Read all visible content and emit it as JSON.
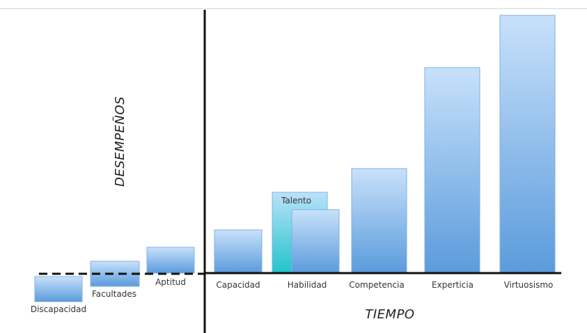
{
  "diagram": {
    "y_axis_label": "DESEMPEÑOS",
    "x_axis_label": "TIEMPO",
    "below_baseline": [
      {
        "label": "Discapacidad"
      }
    ],
    "pre_axis_bars": [
      {
        "label": "Facultades"
      },
      {
        "label": "Aptitud"
      }
    ],
    "main_bars": [
      {
        "label": "Capacidad"
      },
      {
        "label": "Habilidad",
        "overlay_label": "Talento"
      },
      {
        "label": "Competencia"
      },
      {
        "label": "Experticia"
      },
      {
        "label": "Virtuosismo"
      }
    ],
    "colors": {
      "bar_top": "#c8e1fb",
      "bar_bottom": "#5b9bdc",
      "talent_top": "#b9e2fa",
      "talent_bottom": "#22c4cc",
      "axis": "#111111"
    }
  }
}
